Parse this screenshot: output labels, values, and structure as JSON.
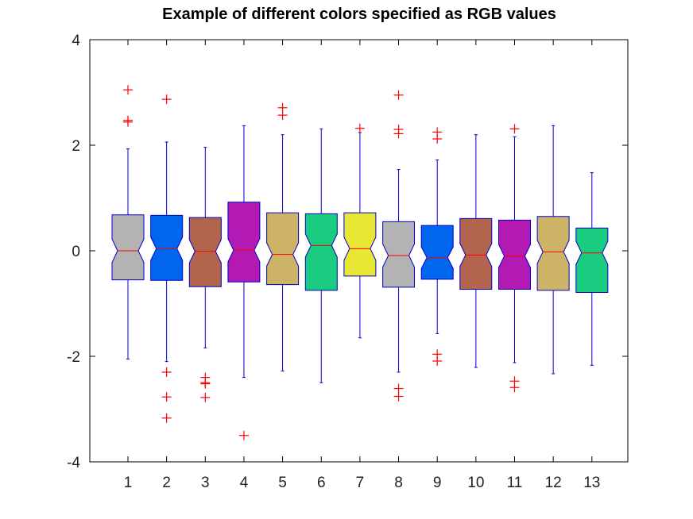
{
  "chart_data": {
    "type": "boxplot",
    "title": "Example of different colors specified as RGB values",
    "xlabel": "",
    "ylabel": "",
    "categories": [
      "1",
      "2",
      "3",
      "4",
      "5",
      "6",
      "7",
      "8",
      "9",
      "10",
      "11",
      "12",
      "13"
    ],
    "ylim": [
      -4,
      4
    ],
    "yticks": [
      -4,
      -2,
      0,
      2,
      4
    ],
    "notched": true,
    "grid": false,
    "legend": "none",
    "colors": {
      "whisker": "#0000cc",
      "box_edge": "#0000cc",
      "median": "#ff0000",
      "outlier": "#ff0000",
      "axes": "#000000"
    },
    "boxes": [
      {
        "category": "1",
        "fill": "#b3b3b3",
        "whisker_low": -2.05,
        "q1": -0.55,
        "median": 0.0,
        "q3": 0.68,
        "whisker_high": 1.93,
        "outliers": [
          3.05,
          2.47,
          2.44
        ]
      },
      {
        "category": "2",
        "fill": "#0066ee",
        "whisker_low": -2.1,
        "q1": -0.56,
        "median": 0.04,
        "q3": 0.67,
        "whisker_high": 2.06,
        "outliers": [
          2.87,
          -2.3,
          -2.77,
          -3.17
        ]
      },
      {
        "category": "3",
        "fill": "#b3644d",
        "whisker_low": -1.84,
        "q1": -0.68,
        "median": -0.01,
        "q3": 0.63,
        "whisker_high": 1.96,
        "outliers": [
          -2.4,
          -2.5,
          -2.52,
          -2.78
        ]
      },
      {
        "category": "4",
        "fill": "#b31ab3",
        "whisker_low": -2.4,
        "q1": -0.59,
        "median": 0.01,
        "q3": 0.92,
        "whisker_high": 2.37,
        "outliers": [
          -3.5
        ]
      },
      {
        "category": "5",
        "fill": "#ccb366",
        "whisker_low": -2.28,
        "q1": -0.64,
        "median": -0.07,
        "q3": 0.72,
        "whisker_high": 2.2,
        "outliers": [
          2.71,
          2.57
        ]
      },
      {
        "category": "6",
        "fill": "#1acc80",
        "whisker_low": -2.5,
        "q1": -0.75,
        "median": 0.1,
        "q3": 0.7,
        "whisker_high": 2.31,
        "outliers": []
      },
      {
        "category": "7",
        "fill": "#e6e633",
        "whisker_low": -1.65,
        "q1": -0.48,
        "median": 0.04,
        "q3": 0.72,
        "whisker_high": 2.24,
        "outliers": [
          2.32
        ]
      },
      {
        "category": "8",
        "fill": "#b3b3b3",
        "whisker_low": -2.3,
        "q1": -0.69,
        "median": -0.09,
        "q3": 0.55,
        "whisker_high": 1.54,
        "outliers": [
          2.95,
          2.3,
          2.22,
          -2.61,
          -2.76
        ]
      },
      {
        "category": "9",
        "fill": "#0066ee",
        "whisker_low": -1.57,
        "q1": -0.54,
        "median": -0.13,
        "q3": 0.48,
        "whisker_high": 1.72,
        "outliers": [
          2.25,
          2.12,
          -1.96,
          -2.09
        ]
      },
      {
        "category": "10",
        "fill": "#b3644d",
        "whisker_low": -2.21,
        "q1": -0.73,
        "median": -0.08,
        "q3": 0.61,
        "whisker_high": 2.2,
        "outliers": []
      },
      {
        "category": "11",
        "fill": "#b31ab3",
        "whisker_low": -2.12,
        "q1": -0.73,
        "median": -0.1,
        "q3": 0.58,
        "whisker_high": 2.16,
        "outliers": [
          2.31,
          -2.47,
          -2.59
        ]
      },
      {
        "category": "12",
        "fill": "#ccb366",
        "whisker_low": -2.33,
        "q1": -0.75,
        "median": -0.02,
        "q3": 0.65,
        "whisker_high": 2.37,
        "outliers": []
      },
      {
        "category": "13",
        "fill": "#1acc80",
        "whisker_low": -2.17,
        "q1": -0.79,
        "median": -0.04,
        "q3": 0.43,
        "whisker_high": 1.48,
        "outliers": []
      }
    ]
  }
}
